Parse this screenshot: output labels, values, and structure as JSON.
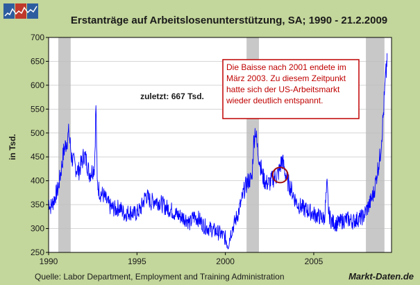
{
  "chart_data": {
    "type": "line",
    "title": "Erstanträge auf Arbeitslosenunterstützung, SA;  1990 - 21.2.2009",
    "ylabel": "in Tsd.",
    "xlabel": "",
    "ylim": [
      250,
      700
    ],
    "xlim": [
      1990,
      2009.4
    ],
    "y_ticks": [
      250,
      300,
      350,
      400,
      450,
      500,
      550,
      600,
      650,
      700
    ],
    "x_ticks": [
      1990,
      1995,
      2000,
      2005
    ],
    "y_tick_labels": [
      "250",
      "300",
      "350",
      "400",
      "450",
      "500",
      "550",
      "600",
      "650",
      "700"
    ],
    "x_tick_labels": [
      "1990",
      "1995",
      "2000",
      "2005"
    ],
    "grid": "horizontal",
    "recession_bands": [
      {
        "start": 1990.55,
        "end": 1991.25
      },
      {
        "start": 2001.2,
        "end": 2001.9
      },
      {
        "start": 2007.95,
        "end": 2009.0
      }
    ],
    "series": [
      {
        "name": "Erstanträge",
        "color": "#0000ff",
        "points": [
          [
            1990.0,
            360
          ],
          [
            1990.1,
            345
          ],
          [
            1990.25,
            355
          ],
          [
            1990.4,
            370
          ],
          [
            1990.55,
            385
          ],
          [
            1990.7,
            420
          ],
          [
            1990.85,
            460
          ],
          [
            1991.0,
            480
          ],
          [
            1991.15,
            500
          ],
          [
            1991.3,
            450
          ],
          [
            1991.5,
            430
          ],
          [
            1991.7,
            420
          ],
          [
            1991.9,
            440
          ],
          [
            1992.0,
            455
          ],
          [
            1992.15,
            440
          ],
          [
            1992.3,
            415
          ],
          [
            1992.45,
            420
          ],
          [
            1992.6,
            430
          ],
          [
            1992.68,
            560
          ],
          [
            1992.75,
            395
          ],
          [
            1992.9,
            375
          ],
          [
            1993.1,
            370
          ],
          [
            1993.3,
            355
          ],
          [
            1993.5,
            345
          ],
          [
            1993.8,
            340
          ],
          [
            1994.0,
            345
          ],
          [
            1994.3,
            330
          ],
          [
            1994.6,
            335
          ],
          [
            1994.9,
            330
          ],
          [
            1995.2,
            340
          ],
          [
            1995.5,
            370
          ],
          [
            1995.8,
            355
          ],
          [
            1996.0,
            360
          ],
          [
            1996.3,
            355
          ],
          [
            1996.6,
            345
          ],
          [
            1996.9,
            340
          ],
          [
            1997.2,
            330
          ],
          [
            1997.5,
            325
          ],
          [
            1997.8,
            320
          ],
          [
            1998.0,
            310
          ],
          [
            1998.2,
            325
          ],
          [
            1998.5,
            320
          ],
          [
            1998.8,
            305
          ],
          [
            1999.1,
            300
          ],
          [
            1999.4,
            295
          ],
          [
            1999.7,
            290
          ],
          [
            2000.0,
            280
          ],
          [
            2000.15,
            265
          ],
          [
            2000.3,
            290
          ],
          [
            2000.5,
            310
          ],
          [
            2000.7,
            330
          ],
          [
            2000.9,
            355
          ],
          [
            2001.1,
            385
          ],
          [
            2001.3,
            400
          ],
          [
            2001.5,
            405
          ],
          [
            2001.6,
            480
          ],
          [
            2001.7,
            510
          ],
          [
            2001.8,
            470
          ],
          [
            2001.95,
            440
          ],
          [
            2002.1,
            410
          ],
          [
            2002.3,
            395
          ],
          [
            2002.5,
            395
          ],
          [
            2002.7,
            405
          ],
          [
            2002.9,
            410
          ],
          [
            2003.05,
            420
          ],
          [
            2003.2,
            445
          ],
          [
            2003.3,
            430
          ],
          [
            2003.5,
            400
          ],
          [
            2003.7,
            385
          ],
          [
            2003.9,
            365
          ],
          [
            2004.1,
            350
          ],
          [
            2004.3,
            345
          ],
          [
            2004.5,
            340
          ],
          [
            2004.8,
            335
          ],
          [
            2005.0,
            330
          ],
          [
            2005.3,
            325
          ],
          [
            2005.6,
            320
          ],
          [
            2005.75,
            390
          ],
          [
            2005.85,
            330
          ],
          [
            2006.0,
            315
          ],
          [
            2006.3,
            310
          ],
          [
            2006.6,
            315
          ],
          [
            2006.9,
            320
          ],
          [
            2007.2,
            315
          ],
          [
            2007.5,
            320
          ],
          [
            2007.8,
            325
          ],
          [
            2008.0,
            340
          ],
          [
            2008.2,
            355
          ],
          [
            2008.4,
            375
          ],
          [
            2008.6,
            420
          ],
          [
            2008.75,
            450
          ],
          [
            2008.9,
            520
          ],
          [
            2009.0,
            575
          ],
          [
            2009.1,
            630
          ],
          [
            2009.15,
            667
          ]
        ]
      }
    ],
    "annotations": {
      "latest": "zuletzt: 667 Tsd.",
      "callout": [
        "Die Baisse nach 2001 endete im",
        "März 2003. Zu diesem Zeitpunkt",
        "hatte sich der US-Arbeitsmarkt",
        "wieder deutlich entspannt."
      ],
      "circle_center": [
        2003.1,
        412
      ]
    },
    "source": "Quelle: Labor Department, Employment and Training Administration",
    "brand": "Markt-Daten.de",
    "colors": {
      "background": "#c3d69b",
      "plot_background": "#ffffff",
      "line": "#0000ff",
      "band": "#c8c8c8",
      "callout_border": "#c00000",
      "callout_text": "#c00000"
    }
  }
}
